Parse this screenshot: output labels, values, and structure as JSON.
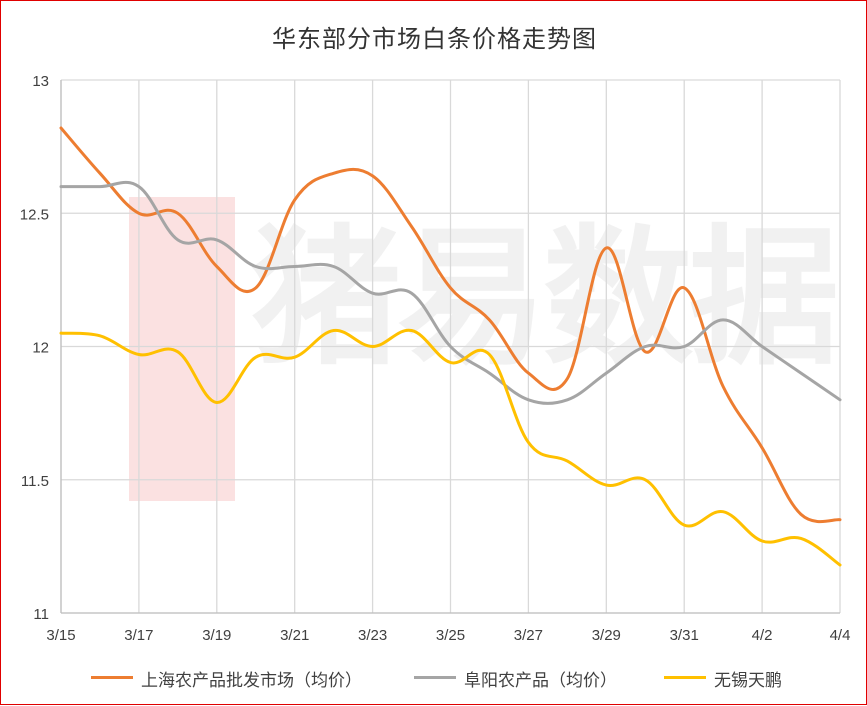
{
  "chart_data": {
    "type": "line",
    "title": "华东部分市场白条价格走势图",
    "x": [
      "3/15",
      "3/16",
      "3/17",
      "3/18",
      "3/19",
      "3/20",
      "3/21",
      "3/22",
      "3/23",
      "3/24",
      "3/25",
      "3/26",
      "3/27",
      "3/28",
      "3/29",
      "3/30",
      "3/31",
      "4/1",
      "4/2",
      "4/3",
      "4/4"
    ],
    "x_tick_labels": [
      "3/15",
      "3/17",
      "3/19",
      "3/21",
      "3/23",
      "3/25",
      "3/27",
      "3/29",
      "3/31",
      "4/2",
      "4/4"
    ],
    "ylim": [
      11,
      13
    ],
    "y_ticks": [
      "13",
      "12.5",
      "12",
      "11.5",
      "11"
    ],
    "grid": "vertical and horizontal",
    "legend_position": "bottom",
    "series": [
      {
        "name": "上海农产品批发市场（均价）",
        "color": "#ED7D31",
        "values": [
          12.82,
          12.65,
          12.5,
          12.5,
          12.3,
          12.22,
          12.55,
          12.65,
          12.64,
          12.45,
          12.22,
          12.1,
          11.9,
          11.88,
          12.37,
          11.98,
          12.22,
          11.85,
          11.62,
          11.37,
          11.35
        ]
      },
      {
        "name": "阜阳农产品（均价）",
        "color": "#A5A5A5",
        "values": [
          12.6,
          12.6,
          12.6,
          12.4,
          12.4,
          12.3,
          12.3,
          12.3,
          12.2,
          12.2,
          12.0,
          11.9,
          11.8,
          11.8,
          11.9,
          12.0,
          12.0,
          12.1,
          12.0,
          11.9,
          11.8
        ]
      },
      {
        "name": "无锡天鹏",
        "color": "#FFC000",
        "values": [
          12.05,
          12.04,
          11.97,
          11.98,
          11.79,
          11.96,
          11.96,
          12.06,
          12.0,
          12.06,
          11.94,
          11.97,
          11.64,
          11.57,
          11.48,
          11.5,
          11.33,
          11.38,
          11.27,
          11.28,
          11.18
        ]
      }
    ]
  },
  "watermark": {
    "text": "猪易数据",
    "logo": "68"
  }
}
